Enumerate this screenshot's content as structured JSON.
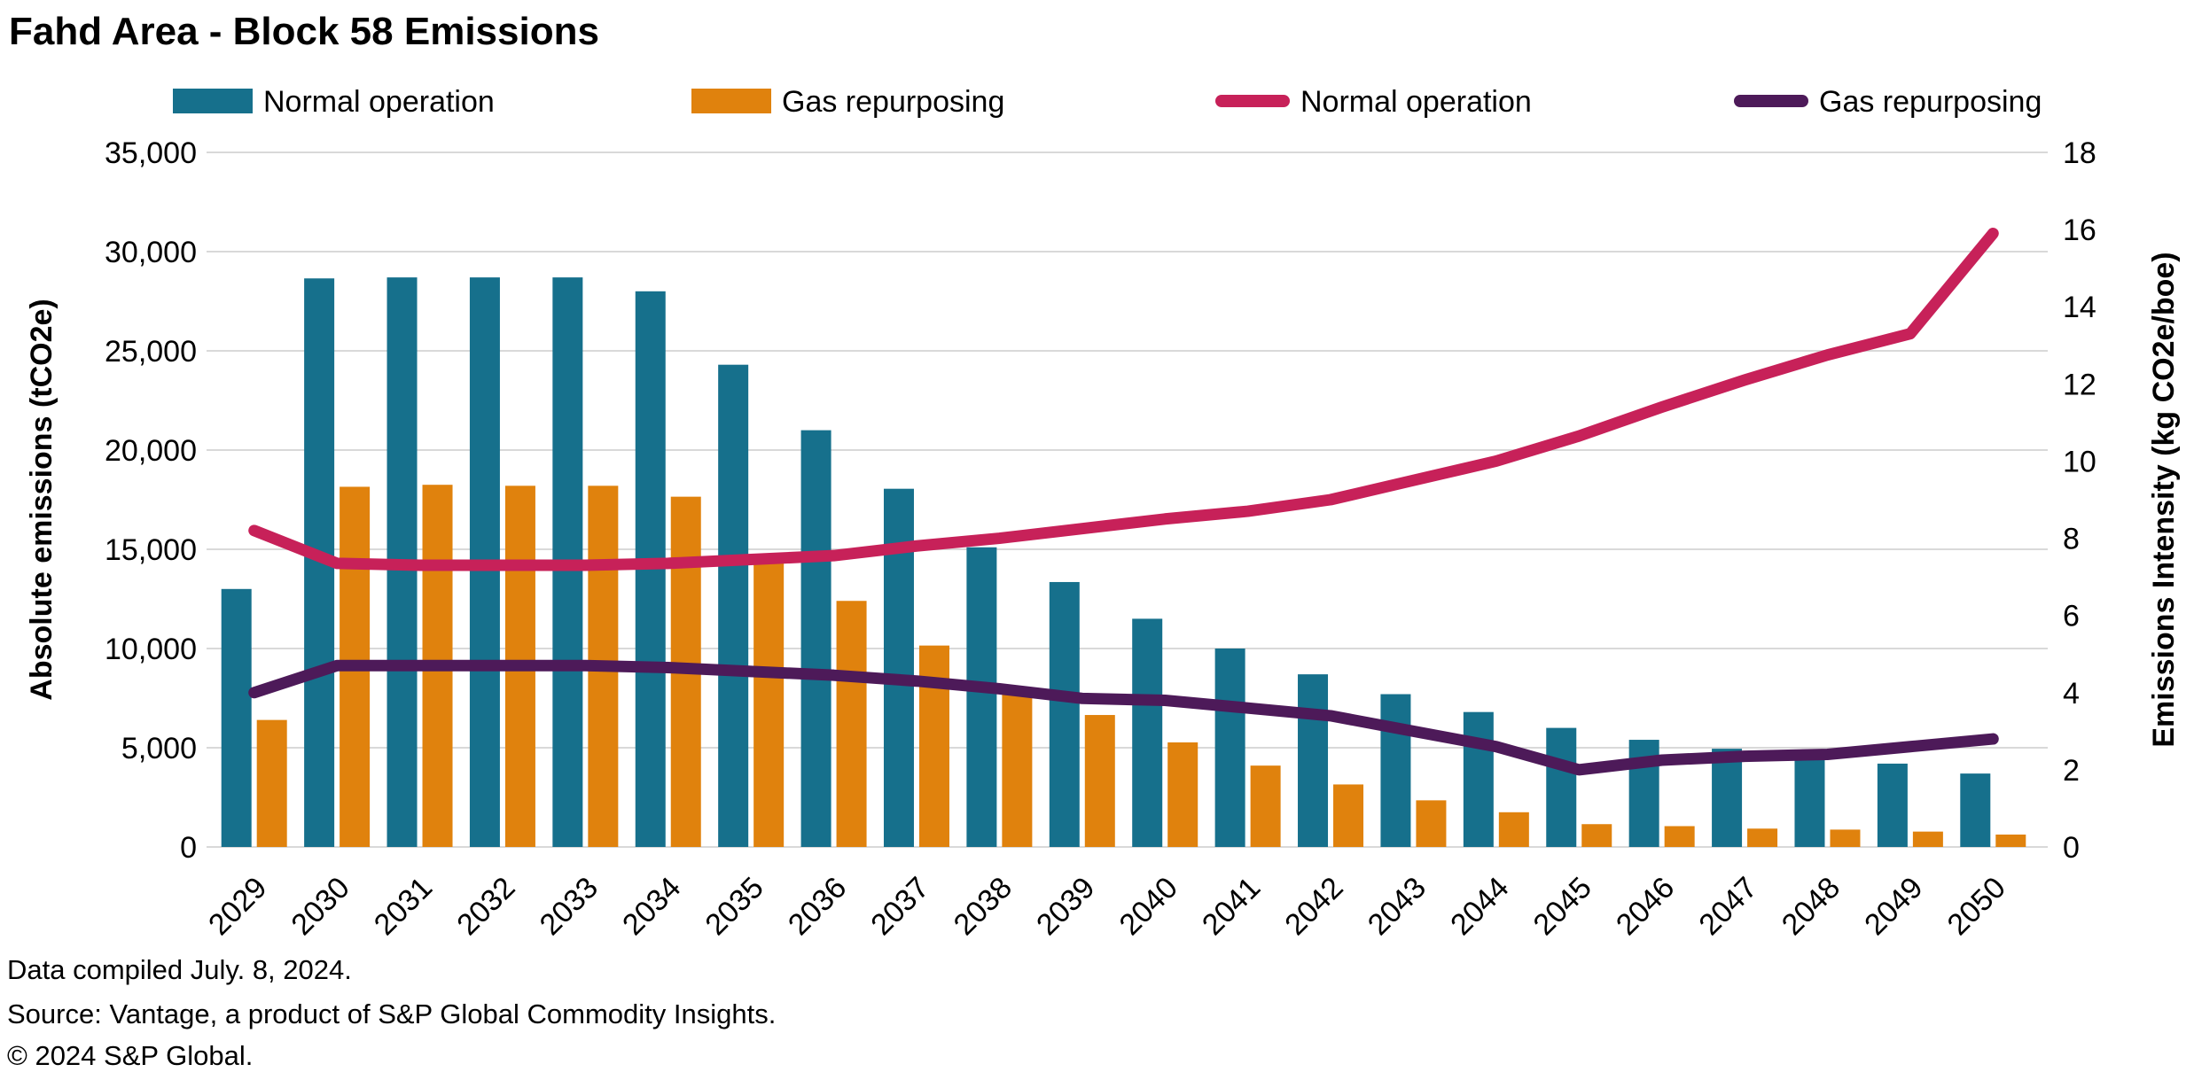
{
  "title": "Fahd Area - Block 58 Emissions",
  "legend": [
    {
      "label": "Normal operation",
      "marker": "bar",
      "color": "#16708C"
    },
    {
      "label": "Gas repurposing",
      "marker": "bar",
      "color": "#E0820D"
    },
    {
      "label": "Normal operation",
      "marker": "line",
      "color": "#C72159"
    },
    {
      "label": "Gas repurposing",
      "marker": "line",
      "color": "#4D1A59"
    }
  ],
  "footer": {
    "line1": "Data compiled July. 8, 2024.",
    "line2": "Source: Vantage, a product of S&P Global Commodity Insights.",
    "line3": "© 2024 S&P Global."
  },
  "chart_data": {
    "type": "bar+line",
    "title": "Fahd Area - Block 58 Emissions",
    "categories": [
      2029,
      2030,
      2031,
      2032,
      2033,
      2034,
      2035,
      2036,
      2037,
      2038,
      2039,
      2040,
      2041,
      2042,
      2043,
      2044,
      2045,
      2046,
      2047,
      2048,
      2049,
      2050
    ],
    "ylabel_left": "Absolute emissions (tCO2e)",
    "ylabel_right": "Emissions Intensity (kg CO2e/boe)",
    "ylim_left": [
      0,
      35000
    ],
    "ytick_step_left": 5000,
    "ylim_right": [
      0,
      18
    ],
    "ytick_step_right": 2,
    "grid": "horizontal",
    "legend_position": "top",
    "bar_series": [
      {
        "name": "Normal operation",
        "axis": "left",
        "color": "#16708C",
        "values": [
          13000,
          28650,
          28700,
          28700,
          28700,
          28000,
          24300,
          21000,
          18050,
          15100,
          13350,
          11500,
          10000,
          8700,
          7700,
          6800,
          6000,
          5400,
          4950,
          4400,
          4200,
          3700
        ]
      },
      {
        "name": "Gas repurposing",
        "axis": "left",
        "color": "#E0820D",
        "values": [
          6400,
          18150,
          18250,
          18200,
          18200,
          17650,
          14600,
          12400,
          10150,
          7900,
          6650,
          5270,
          4100,
          3150,
          2350,
          1750,
          1150,
          1050,
          925,
          875,
          775,
          625
        ]
      }
    ],
    "line_series": [
      {
        "name": "Normal operation",
        "axis": "right",
        "color": "#C72159",
        "values": [
          8.2,
          7.35,
          7.3,
          7.3,
          7.3,
          7.35,
          7.45,
          7.55,
          7.8,
          8.0,
          8.25,
          8.5,
          8.7,
          9.0,
          9.5,
          10.0,
          10.65,
          11.4,
          12.1,
          12.75,
          13.3,
          15.9
        ]
      },
      {
        "name": "Gas repurposing",
        "axis": "right",
        "color": "#4D1A59",
        "values": [
          4.0,
          4.7,
          4.7,
          4.7,
          4.7,
          4.65,
          4.55,
          4.45,
          4.3,
          4.1,
          3.85,
          3.8,
          3.6,
          3.4,
          3.0,
          2.6,
          2.0,
          2.25,
          2.35,
          2.4,
          2.6,
          2.8
        ]
      }
    ]
  },
  "colors": {
    "background": "#FFFFFF",
    "gridline": "#D9D9D9",
    "text": "#000000"
  }
}
